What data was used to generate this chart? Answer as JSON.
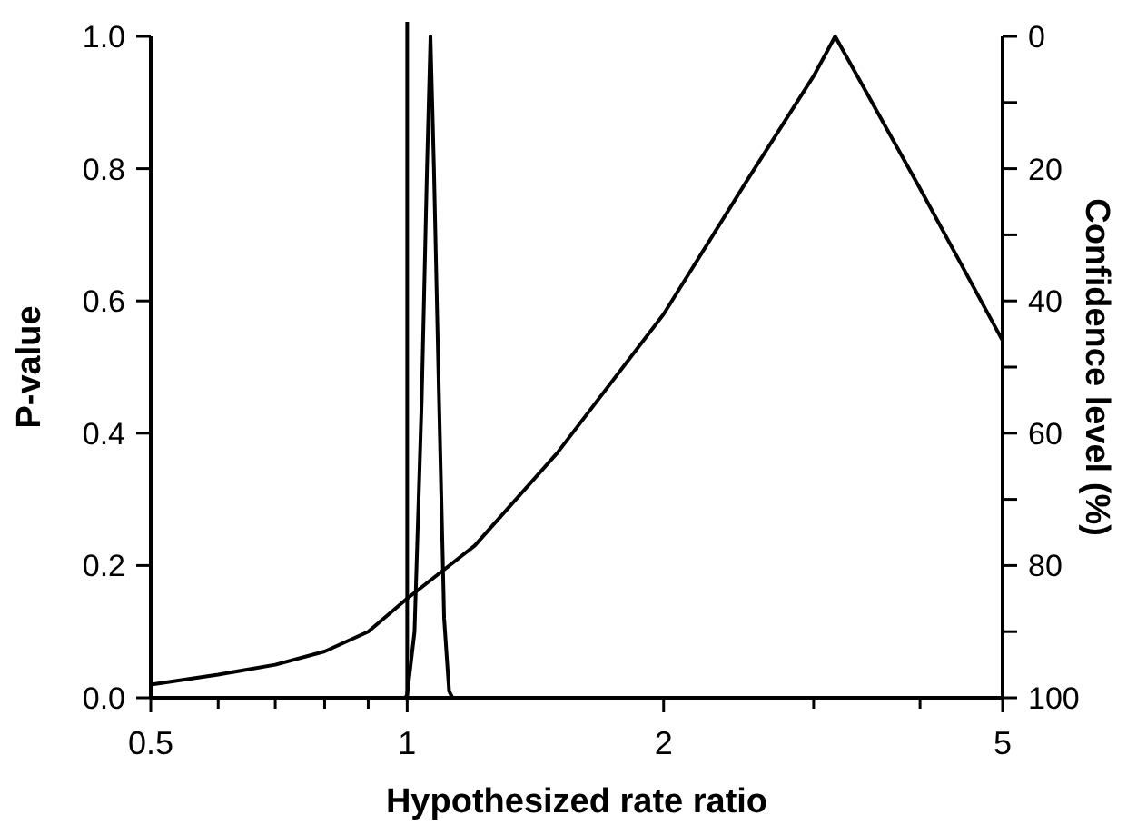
{
  "chart_data": {
    "type": "line",
    "xlabel": "Hypothesized rate ratio",
    "ylabel": "P-value",
    "y2label": "Confidence level (%)",
    "log": "x",
    "xlim": [
      0.5,
      5
    ],
    "xticks": [
      0.5,
      1,
      2,
      5,
      {
        "value": 0.6,
        "label": null
      },
      {
        "value": 0.7,
        "label": null
      },
      {
        "value": 0.8,
        "label": null
      },
      {
        "value": 0.9,
        "label": null
      },
      {
        "value": 3,
        "label": null
      },
      {
        "value": 4,
        "label": null
      }
    ],
    "ylim": [
      0,
      1
    ],
    "yticks": [
      {
        "value": 0,
        "label": "0.0"
      },
      0.2,
      0.4,
      0.6,
      0.8,
      {
        "value": 1,
        "label": "1.0"
      }
    ],
    "y2lim": [
      100,
      0
    ],
    "y2ticks": [
      0,
      20,
      40,
      60,
      80,
      100,
      {
        "value": 10,
        "label": null
      },
      {
        "value": 30,
        "label": null
      },
      {
        "value": 50,
        "label": null
      },
      {
        "value": 70,
        "label": null
      },
      {
        "value": 90,
        "label": null
      }
    ],
    "grid": false,
    "marker": "none",
    "line_style": "solid",
    "ref_lines": [
      {
        "axis": "x",
        "value": 1,
        "color": "#000000"
      }
    ],
    "series": [
      {
        "color": "#000000",
        "x": [
          0.5,
          0.6,
          0.7,
          0.8,
          0.9,
          1,
          1.2,
          1.5,
          2,
          2.5,
          3,
          3.18,
          4,
          5
        ],
        "values": [
          0.02,
          0.035,
          0.05,
          0.07,
          0.1,
          0.15,
          0.23,
          0.37,
          0.58,
          0.78,
          0.94,
          1.0,
          0.77,
          0.54
        ]
      },
      {
        "color": "#000000",
        "x": [
          0.995,
          1.0,
          1.02,
          1.04,
          1.055,
          1.065,
          1.075,
          1.09,
          1.105,
          1.12,
          1.13
        ],
        "values": [
          0,
          0.005,
          0.1,
          0.45,
          0.8,
          1.0,
          0.8,
          0.45,
          0.12,
          0.01,
          0
        ]
      }
    ]
  }
}
